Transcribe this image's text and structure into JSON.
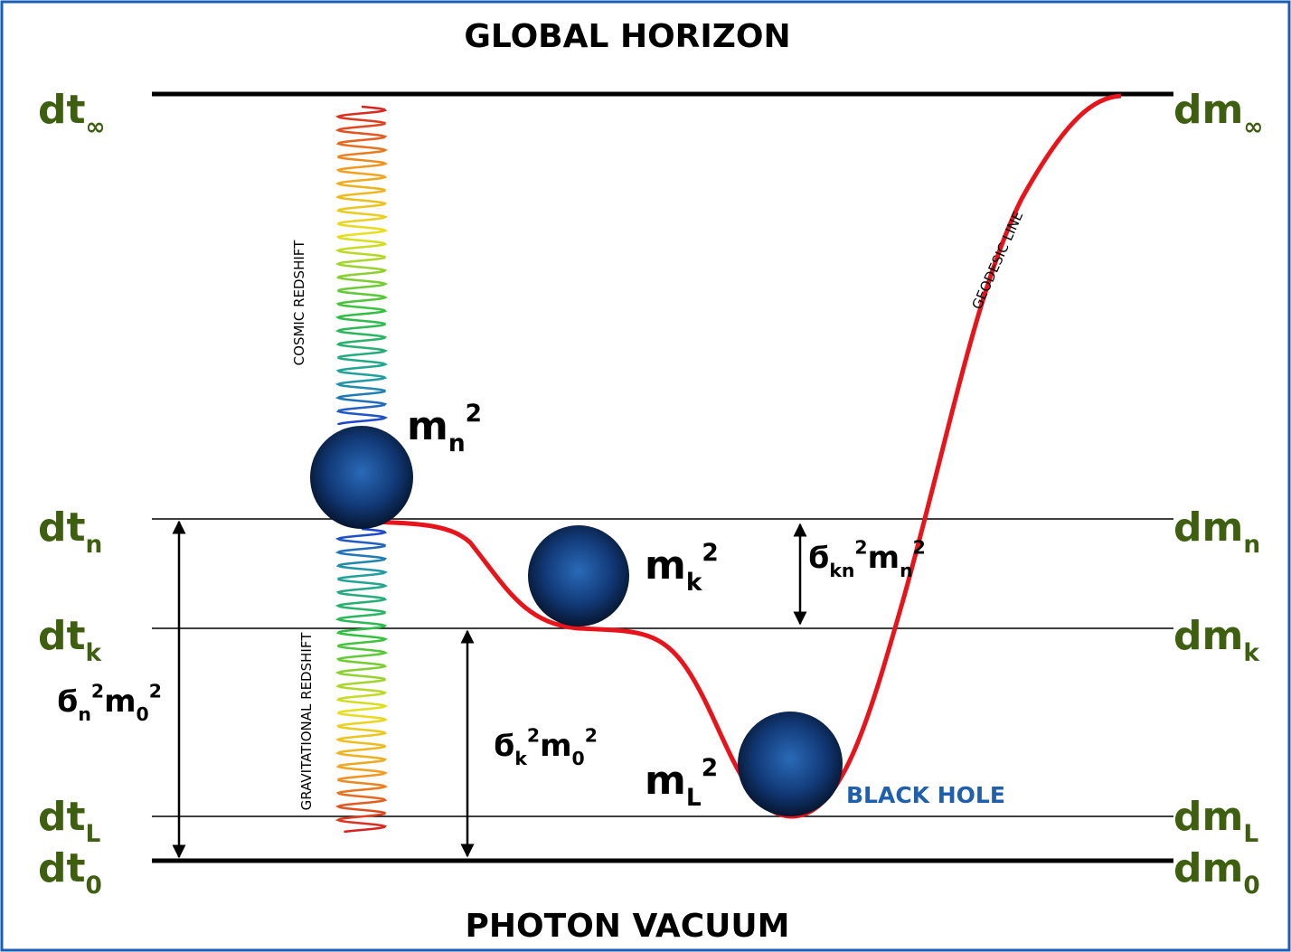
{
  "header": {
    "title": "GLOBAL HORIZON"
  },
  "footer": {
    "title": "PHOTON VACUUM"
  },
  "left_labels": [
    {
      "base": "dt",
      "sub": "∞"
    },
    {
      "base": "dt",
      "sub": "n"
    },
    {
      "base": "dt",
      "sub": "k"
    },
    {
      "base": "dt",
      "sub": "L"
    },
    {
      "base": "dt",
      "sub": "0"
    }
  ],
  "right_labels": [
    {
      "base": "dm",
      "sub": "∞"
    },
    {
      "base": "dm",
      "sub": "n"
    },
    {
      "base": "dm",
      "sub": "k"
    },
    {
      "base": "dm",
      "sub": "L"
    },
    {
      "base": "dm",
      "sub": "0"
    }
  ],
  "masses": [
    {
      "base": "m",
      "sub": "n",
      "sup": "2"
    },
    {
      "base": "m",
      "sub": "k",
      "sup": "2"
    },
    {
      "base": "m",
      "sub": "L",
      "sup": "2"
    }
  ],
  "intervals": [
    {
      "parts": [
        {
          "base": "ϭ",
          "sub": "n",
          "sup": "2"
        },
        {
          "base": "m",
          "sub": "0",
          "sup": "2"
        }
      ]
    },
    {
      "parts": [
        {
          "base": "ϭ",
          "sub": "k",
          "sup": "2"
        },
        {
          "base": "m",
          "sub": "0",
          "sup": "2"
        }
      ]
    },
    {
      "parts": [
        {
          "base": "ϭ",
          "sub": "kn",
          "sup": "2"
        },
        {
          "base": "m",
          "sub": "n",
          "sup": "2"
        }
      ]
    }
  ],
  "annotations": {
    "cosmic": "COSMIC REDSHIFT",
    "gravitational": "GRAVITATIONAL REDSHIFT",
    "geodesic": "GEODESIC LINE",
    "black_hole": "BLACK HOLE"
  }
}
